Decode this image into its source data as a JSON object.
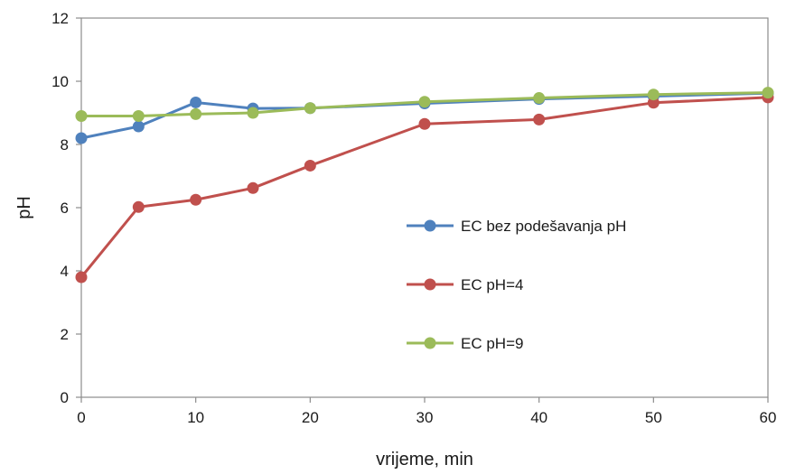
{
  "chart_data": {
    "type": "line",
    "title": "",
    "xlabel": "vrijeme, min",
    "ylabel": "pH",
    "xlim": [
      0,
      60
    ],
    "ylim": [
      0,
      12
    ],
    "xticks": [
      0,
      10,
      20,
      30,
      40,
      50,
      60
    ],
    "yticks": [
      0,
      2,
      4,
      6,
      8,
      10,
      12
    ],
    "grid": false,
    "legend_position": "center-right",
    "series": [
      {
        "name": "EC bez podešavanja pH",
        "color": "#4F81BD",
        "x": [
          0,
          5,
          10,
          15,
          20,
          30,
          40,
          50,
          60
        ],
        "y": [
          8.2,
          8.57,
          9.33,
          9.14,
          9.15,
          9.3,
          9.44,
          9.53,
          9.62
        ]
      },
      {
        "name": "EC pH=4",
        "color": "#C0504D",
        "x": [
          0,
          5,
          10,
          15,
          20,
          30,
          40,
          50,
          60
        ],
        "y": [
          3.8,
          6.02,
          6.25,
          6.62,
          7.33,
          8.65,
          8.79,
          9.32,
          9.49
        ]
      },
      {
        "name": "EC pH=9",
        "color": "#9BBB59",
        "x": [
          0,
          5,
          10,
          15,
          20,
          30,
          40,
          50,
          60
        ],
        "y": [
          8.9,
          8.9,
          8.96,
          9.0,
          9.15,
          9.35,
          9.47,
          9.58,
          9.64
        ]
      }
    ]
  }
}
